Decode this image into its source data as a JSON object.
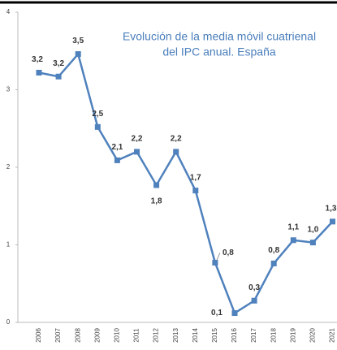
{
  "chart_data": {
    "type": "line",
    "title": [
      "Evolución de la media móvil  cuatrienal",
      "del IPC anual. España"
    ],
    "categories": [
      "2006",
      "2007",
      "2008",
      "2009",
      "2010",
      "2011",
      "2012",
      "2013",
      "2014",
      "2015",
      "2016",
      "2017",
      "2018",
      "2019",
      "2020",
      "2021"
    ],
    "series": [
      {
        "name": "IPC",
        "color": "#4f81bd",
        "values": [
          3.22,
          3.17,
          3.46,
          2.52,
          2.09,
          2.2,
          1.77,
          2.2,
          1.7,
          0.77,
          0.12,
          0.28,
          0.76,
          1.06,
          1.03,
          1.3
        ],
        "value_labels": [
          "3,2",
          "3,2",
          "3,5",
          "2,5",
          "2,1",
          "2,2",
          "1,8",
          "2,2",
          "1,7",
          "0,8",
          "0,1",
          "0,3",
          "0,8",
          "1,1",
          "1,0",
          "1,3"
        ]
      }
    ],
    "ylim": [
      0,
      4
    ],
    "yticks": [
      0,
      1,
      2,
      3,
      4
    ],
    "grid": false
  }
}
